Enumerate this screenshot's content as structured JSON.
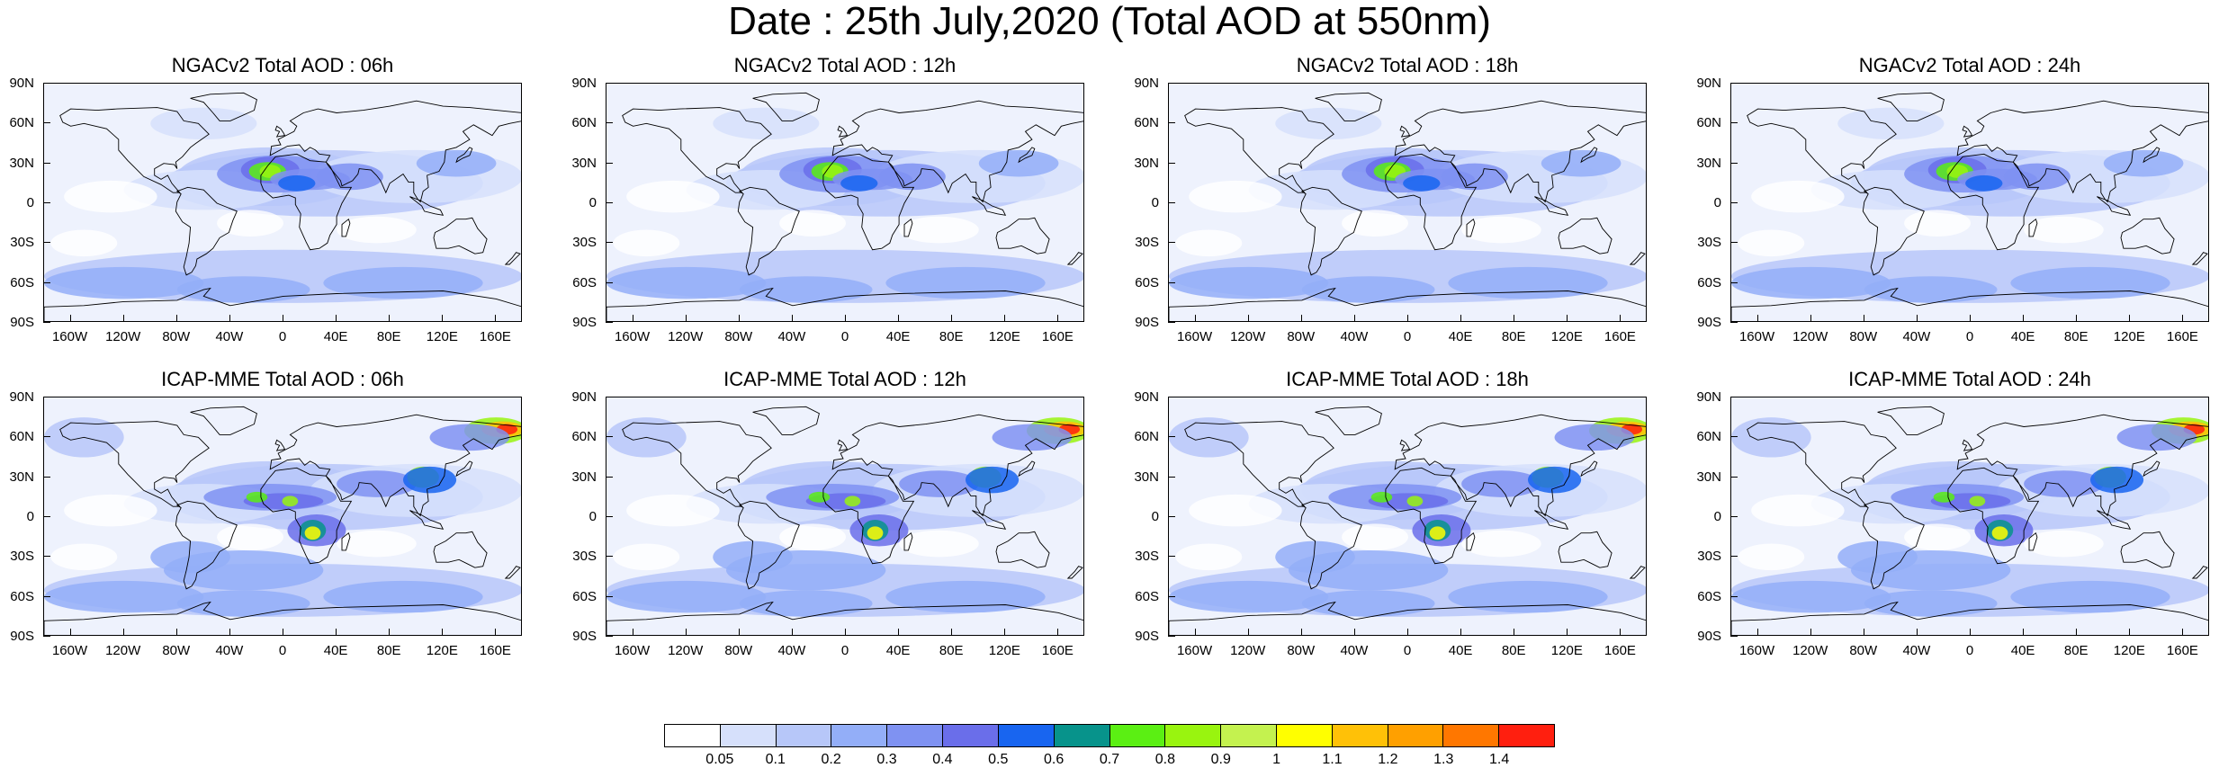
{
  "title": "Date : 25th July,2020 (Total AOD at 550nm)",
  "panels": [
    {
      "title": "NGACv2 Total AOD : 06h",
      "model": "ngac"
    },
    {
      "title": "NGACv2 Total AOD : 12h",
      "model": "ngac"
    },
    {
      "title": "NGACv2 Total AOD : 18h",
      "model": "ngac"
    },
    {
      "title": "NGACv2 Total AOD : 24h",
      "model": "ngac"
    },
    {
      "title": "ICAP-MME Total AOD : 06h",
      "model": "icap"
    },
    {
      "title": "ICAP-MME Total AOD : 12h",
      "model": "icap"
    },
    {
      "title": "ICAP-MME Total AOD : 18h",
      "model": "icap"
    },
    {
      "title": "ICAP-MME Total AOD : 24h",
      "model": "icap"
    }
  ],
  "lat_labels": [
    "90N",
    "60N",
    "30N",
    "0",
    "30S",
    "60S",
    "90S"
  ],
  "lon_labels": [
    "160W",
    "120W",
    "80W",
    "40W",
    "0",
    "40E",
    "80E",
    "120E",
    "160E"
  ],
  "colorbar": {
    "colors": [
      "#ffffff",
      "#d6e0fb",
      "#b7c7f9",
      "#93aef8",
      "#7f92f2",
      "#6a6eea",
      "#1865f0",
      "#07938b",
      "#5bef13",
      "#99f40f",
      "#c4f24f",
      "#ffff00",
      "#ffc107",
      "#ffa000",
      "#ff7700",
      "#ff1f0f"
    ],
    "labels": [
      "0.05",
      "0.1",
      "0.2",
      "0.3",
      "0.4",
      "0.5",
      "0.6",
      "0.7",
      "0.8",
      "0.9",
      "1",
      "1.1",
      "1.2",
      "1.3",
      "1.4"
    ]
  }
}
